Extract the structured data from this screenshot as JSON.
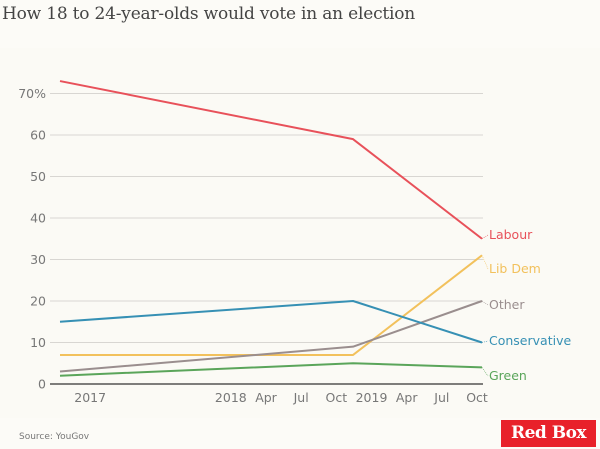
{
  "title": "How 18 to 24-year-olds would vote in an election",
  "source": "Source: YouGov",
  "logo": "Red Box",
  "chart_data": {
    "type": "line",
    "title": "How 18 to 24-year-olds would vote in an election",
    "xlabel": "",
    "ylabel": "",
    "ylim": [
      0,
      75
    ],
    "yticks": [
      0,
      10,
      20,
      30,
      40,
      50,
      60,
      70
    ],
    "ytick_labels": [
      "0",
      "10",
      "20",
      "30",
      "40",
      "50",
      "60",
      "70%"
    ],
    "xlim": [
      "2016-10",
      "2019-10"
    ],
    "xticks": [
      "2017-01",
      "2018-01",
      "2018-04",
      "2018-07",
      "2018-10",
      "2019-01",
      "2019-04",
      "2019-07",
      "2019-10"
    ],
    "xtick_labels": [
      "2017",
      "2018",
      "Apr",
      "Jul",
      "Oct",
      "2019",
      "Apr",
      "Jul",
      "Oct"
    ],
    "x": [
      "2016-10",
      "2018-11",
      "2019-10"
    ],
    "grid": true,
    "legend": "inline-right",
    "series": [
      {
        "name": "Labour",
        "color": "#e8515a",
        "values": [
          73,
          59,
          35
        ]
      },
      {
        "name": "Lib Dem",
        "color": "#f2c15c",
        "values": [
          7,
          7,
          31
        ]
      },
      {
        "name": "Other",
        "color": "#9a8e8e",
        "values": [
          3,
          9,
          20
        ]
      },
      {
        "name": "Conservative",
        "color": "#3690b4",
        "values": [
          15,
          20,
          10
        ]
      },
      {
        "name": "Green",
        "color": "#5aa55a",
        "values": [
          2,
          5,
          4
        ]
      }
    ]
  }
}
